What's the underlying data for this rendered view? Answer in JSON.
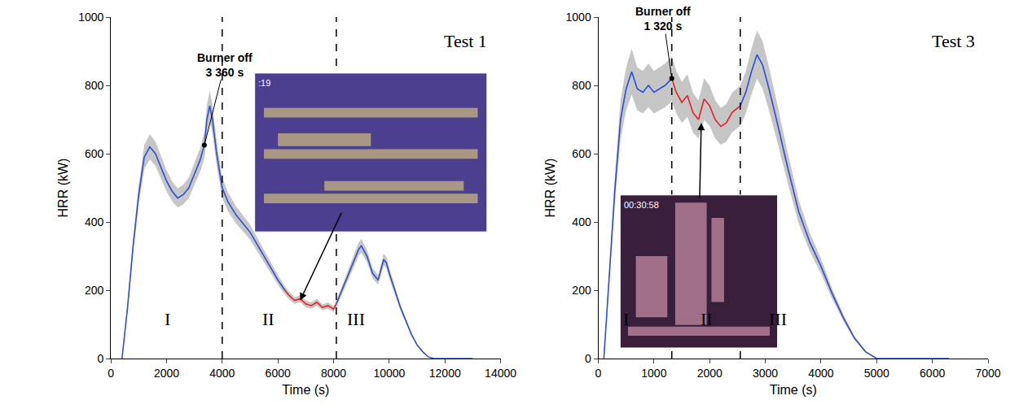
{
  "chart_data": [
    {
      "type": "line",
      "title": "Test 1",
      "x_label": "Time (s)",
      "y_label": "HRR (kW)",
      "xlim": [
        0,
        14000
      ],
      "xticks": [
        0,
        2000,
        4000,
        6000,
        8000,
        10000,
        12000,
        14000
      ],
      "ylim": [
        0,
        1000
      ],
      "yticks": [
        0,
        200,
        400,
        600,
        800,
        1000
      ],
      "grid": false,
      "series": [
        {
          "color": "#2b4fd8",
          "x": [
            400,
            600,
            800,
            1000,
            1200,
            1400,
            1600,
            1800,
            2000,
            2200,
            2400,
            2600,
            2800,
            3000,
            3200,
            3360,
            3450,
            3550,
            3650,
            3800,
            4000,
            4200,
            4500,
            5000,
            5500,
            6000,
            6250
          ],
          "values": [
            0,
            150,
            330,
            480,
            590,
            620,
            600,
            560,
            520,
            490,
            470,
            480,
            500,
            540,
            580,
            625,
            700,
            740,
            700,
            600,
            500,
            460,
            420,
            370,
            300,
            230,
            200
          ],
          "error": [
            0,
            12,
            20,
            28,
            35,
            37,
            36,
            34,
            31,
            29,
            28,
            29,
            30,
            32,
            35,
            38,
            42,
            44,
            42,
            36,
            30,
            28,
            25,
            22,
            18,
            14,
            12
          ]
        },
        {
          "color": "#e5222a",
          "x": [
            6250,
            6400,
            6600,
            6800,
            7000,
            7200,
            7400,
            7600,
            7800,
            8000,
            8100
          ],
          "values": [
            200,
            185,
            170,
            175,
            160,
            155,
            165,
            150,
            155,
            145,
            160
          ],
          "error": [
            12,
            11,
            10,
            10,
            10,
            9,
            10,
            9,
            9,
            9,
            10
          ]
        },
        {
          "color": "#2b4fd8",
          "x": [
            8100,
            8300,
            8500,
            8700,
            8900,
            9000,
            9200,
            9400,
            9600,
            9800,
            9900,
            10000,
            10200,
            10400,
            10600,
            10800,
            11000,
            11200,
            11400,
            11600,
            12000,
            13000
          ],
          "values": [
            160,
            200,
            240,
            280,
            320,
            330,
            300,
            250,
            230,
            290,
            280,
            250,
            200,
            150,
            110,
            70,
            40,
            20,
            5,
            0,
            0,
            0
          ],
          "error": [
            10,
            12,
            14,
            17,
            19,
            20,
            18,
            15,
            14,
            17,
            17,
            15,
            12,
            9,
            7,
            4,
            2,
            1,
            0,
            0,
            0,
            0
          ]
        }
      ],
      "vlines": [
        4000,
        8100
      ],
      "region_labels": [
        {
          "text": "I",
          "x": 2020,
          "y": 115
        },
        {
          "text": "II",
          "x": 5670,
          "y": 115
        },
        {
          "text": "III",
          "x": 8800,
          "y": 115
        }
      ],
      "burner_off": {
        "text_lines": [
          "Burner off",
          "3 360 s"
        ],
        "x": 3360,
        "y": 625,
        "text_x": 4090,
        "text_y": 860
      },
      "photo": {
        "text": ":19",
        "points_to": [
          6800,
          170
        ]
      }
    },
    {
      "type": "line",
      "title": "Test 3",
      "x_label": "Time (s)",
      "y_label": "HRR (kW)",
      "xlim": [
        0,
        7000
      ],
      "xticks": [
        0,
        1000,
        2000,
        3000,
        4000,
        5000,
        6000,
        7000
      ],
      "ylim": [
        0,
        1000
      ],
      "yticks": [
        0,
        200,
        400,
        600,
        800,
        1000
      ],
      "grid": false,
      "series": [
        {
          "color": "#2b4fd8",
          "x": [
            100,
            200,
            300,
            400,
            500,
            600,
            700,
            800,
            900,
            1000,
            1100,
            1200,
            1320
          ],
          "values": [
            0,
            250,
            500,
            700,
            790,
            840,
            790,
            780,
            800,
            780,
            790,
            800,
            820
          ],
          "error": [
            0,
            20,
            40,
            56,
            63,
            67,
            63,
            62,
            64,
            62,
            63,
            64,
            66
          ]
        },
        {
          "color": "#e5222a",
          "x": [
            1320,
            1400,
            1500,
            1600,
            1700,
            1800,
            1900,
            2000,
            2100,
            2200,
            2300,
            2400,
            2550
          ],
          "values": [
            820,
            780,
            750,
            770,
            720,
            700,
            760,
            740,
            700,
            680,
            690,
            720,
            740
          ],
          "error": [
            66,
            62,
            60,
            62,
            58,
            56,
            61,
            59,
            56,
            54,
            55,
            58,
            59
          ]
        },
        {
          "color": "#2b4fd8",
          "x": [
            2550,
            2650,
            2750,
            2850,
            2950,
            3050,
            3200,
            3400,
            3600,
            3800,
            4000,
            4200,
            4400,
            4600,
            4800,
            5000,
            5500,
            6300
          ],
          "values": [
            740,
            780,
            840,
            890,
            860,
            800,
            700,
            560,
            430,
            340,
            270,
            190,
            120,
            60,
            20,
            0,
            0,
            0
          ],
          "error": [
            59,
            62,
            67,
            71,
            69,
            64,
            56,
            45,
            34,
            27,
            22,
            15,
            10,
            5,
            2,
            0,
            0,
            0
          ]
        }
      ],
      "vlines": [
        1320,
        2550
      ],
      "region_labels": [
        {
          "text": "I",
          "x": 500,
          "y": 115
        },
        {
          "text": "II",
          "x": 1950,
          "y": 115
        },
        {
          "text": "III",
          "x": 3220,
          "y": 115
        }
      ],
      "burner_off": {
        "text_lines": [
          "Burner off",
          "1 320 s"
        ],
        "x": 1320,
        "y": 820,
        "text_x": 1170,
        "text_y": 995
      },
      "photo": {
        "text": "00:30:58",
        "points_to": [
          1850,
          690
        ]
      }
    }
  ]
}
